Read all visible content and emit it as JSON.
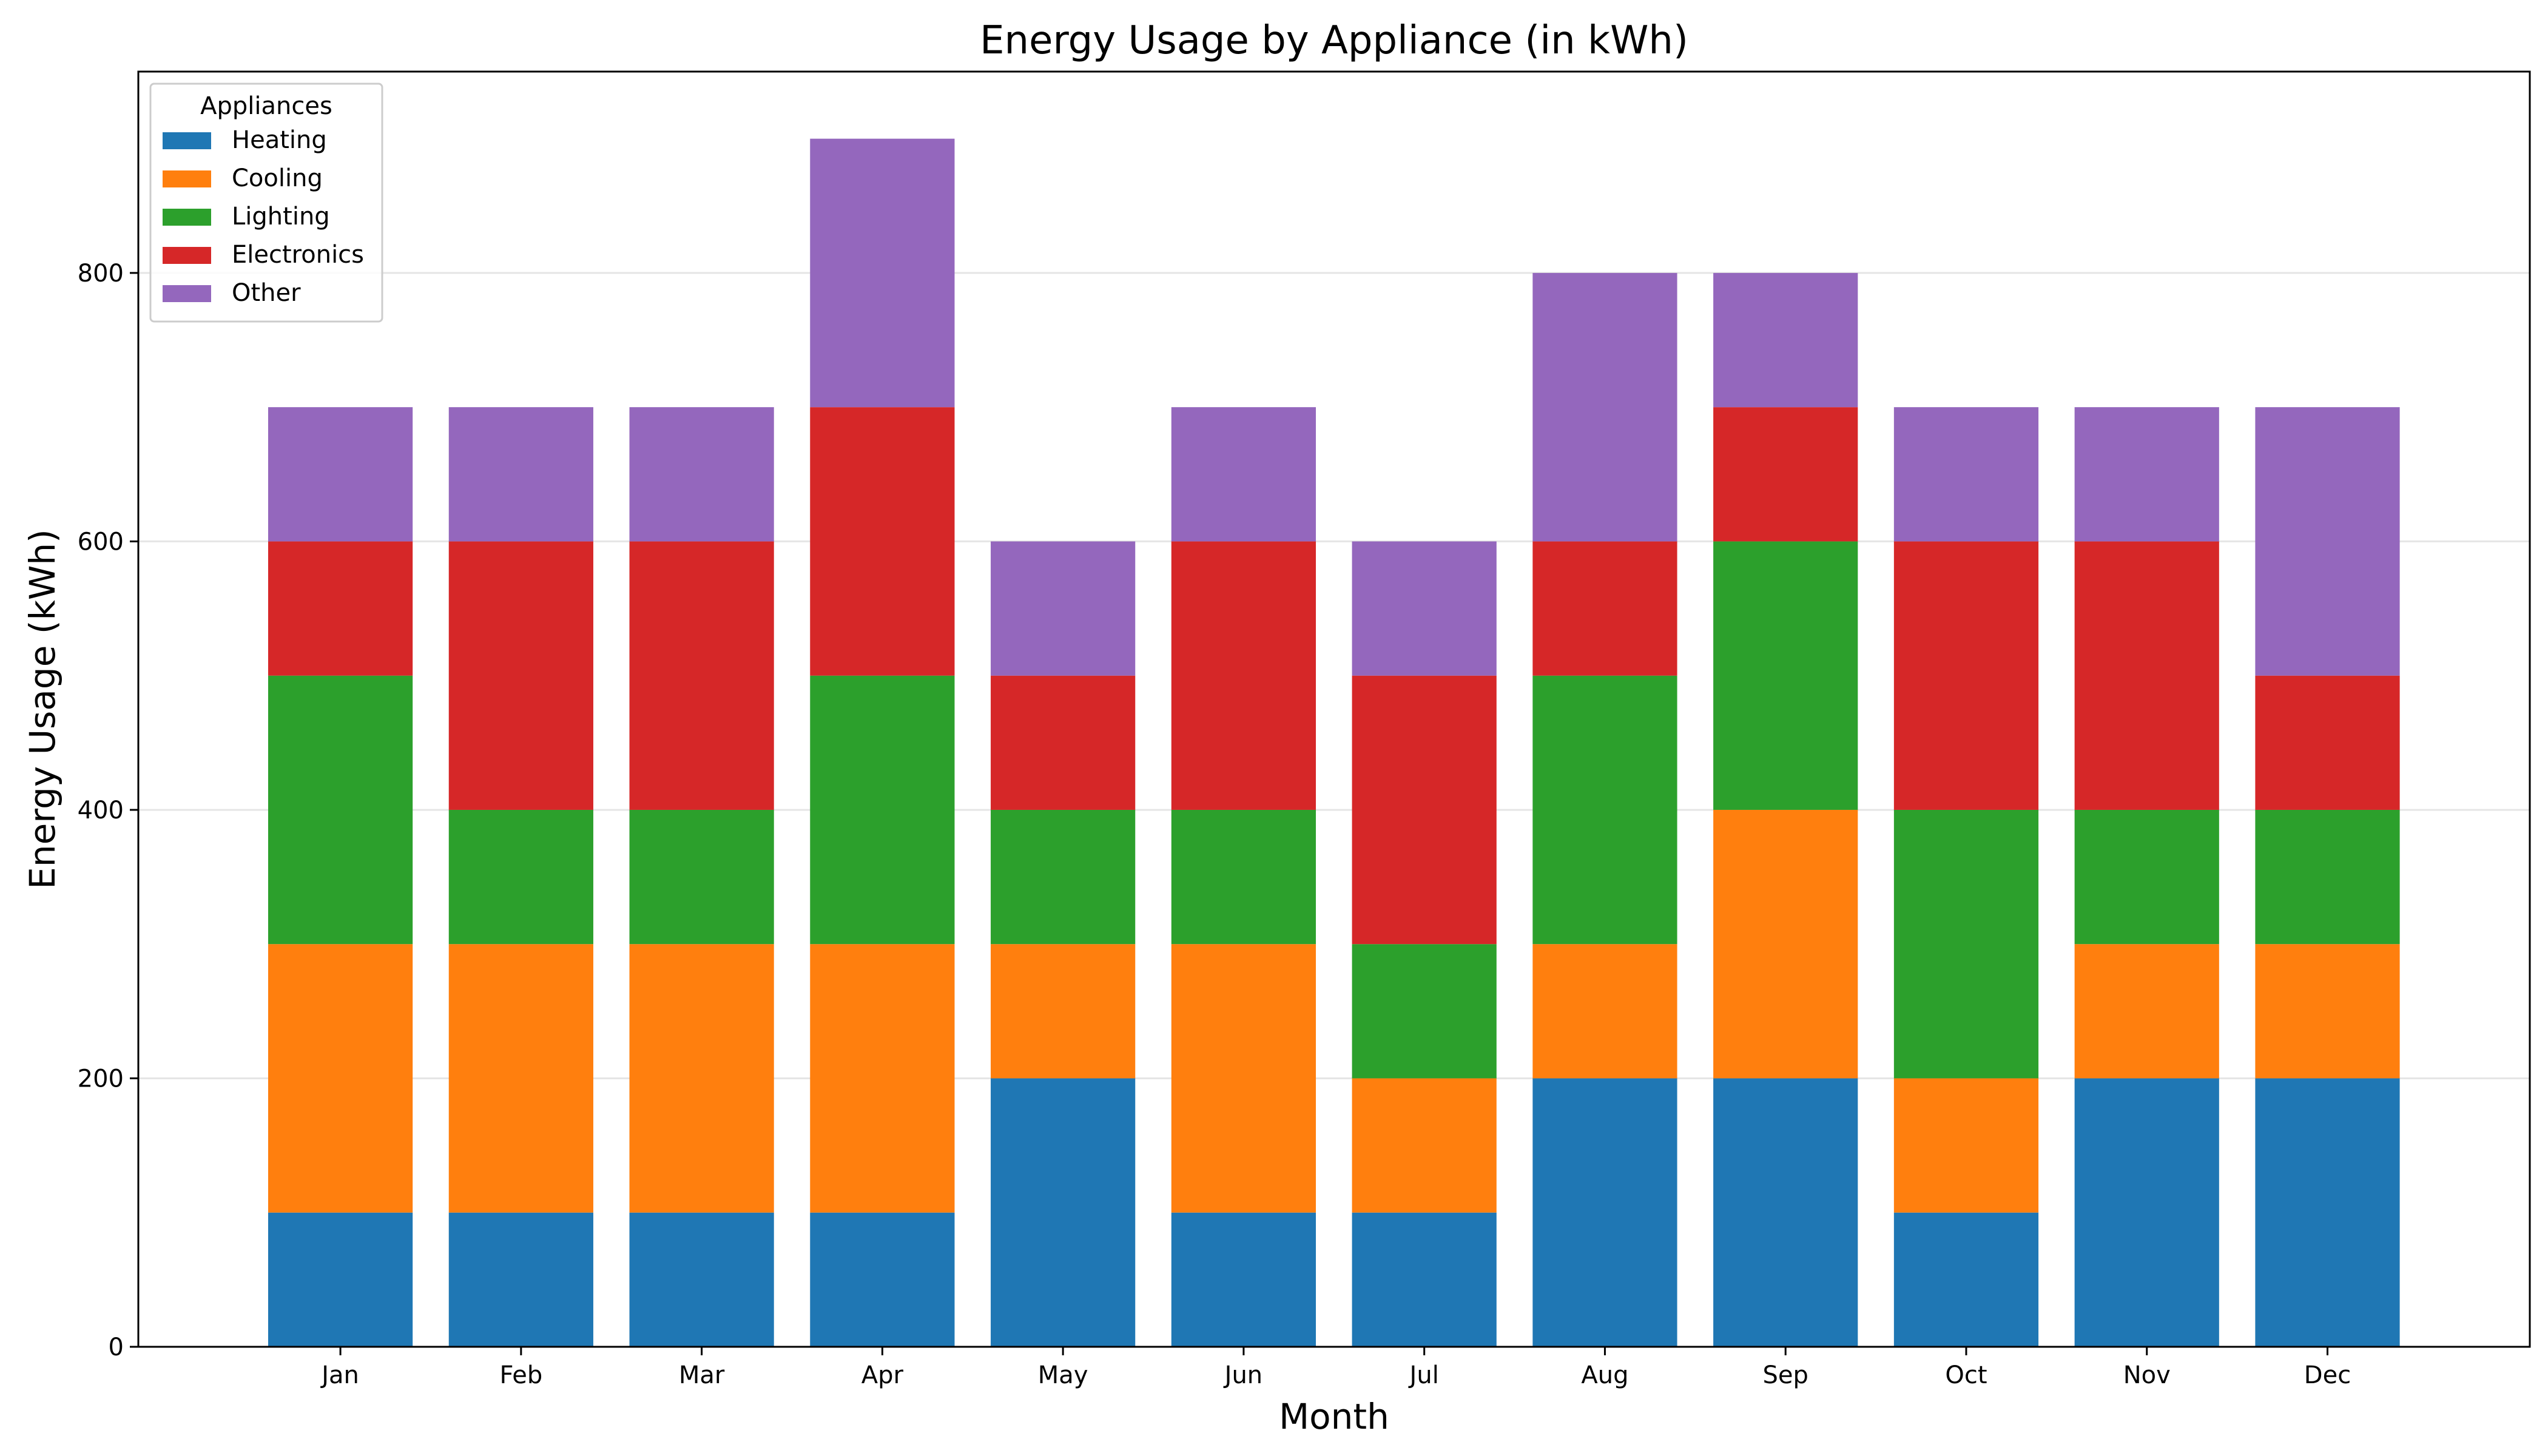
{
  "chart_data": {
    "type": "bar",
    "stacked": true,
    "title": "Energy Usage by Appliance (in kWh)",
    "xlabel": "Month",
    "ylabel": "Energy Usage (kWh)",
    "categories": [
      "Jan",
      "Feb",
      "Mar",
      "Apr",
      "May",
      "Jun",
      "Jul",
      "Aug",
      "Sep",
      "Oct",
      "Nov",
      "Dec"
    ],
    "ylim": [
      0,
      950
    ],
    "yticks": [
      0,
      200,
      400,
      600,
      800
    ],
    "grid": "horizontal",
    "legend": {
      "title": "Appliances",
      "placement": "top-left"
    },
    "series": [
      {
        "name": "Heating",
        "color": "#1f77b4",
        "values": [
          100,
          100,
          100,
          100,
          200,
          100,
          100,
          200,
          200,
          100,
          200,
          200
        ]
      },
      {
        "name": "Cooling",
        "color": "#ff7f0e",
        "values": [
          200,
          200,
          200,
          200,
          100,
          200,
          100,
          100,
          200,
          100,
          100,
          100
        ]
      },
      {
        "name": "Lighting",
        "color": "#2ca02c",
        "values": [
          200,
          100,
          100,
          200,
          100,
          100,
          100,
          200,
          200,
          200,
          100,
          100
        ]
      },
      {
        "name": "Electronics",
        "color": "#d62728",
        "values": [
          100,
          200,
          200,
          200,
          100,
          200,
          200,
          100,
          100,
          200,
          200,
          100
        ]
      },
      {
        "name": "Other",
        "color": "#9467bd",
        "values": [
          100,
          100,
          100,
          200,
          100,
          100,
          100,
          200,
          100,
          100,
          100,
          200
        ]
      }
    ]
  }
}
